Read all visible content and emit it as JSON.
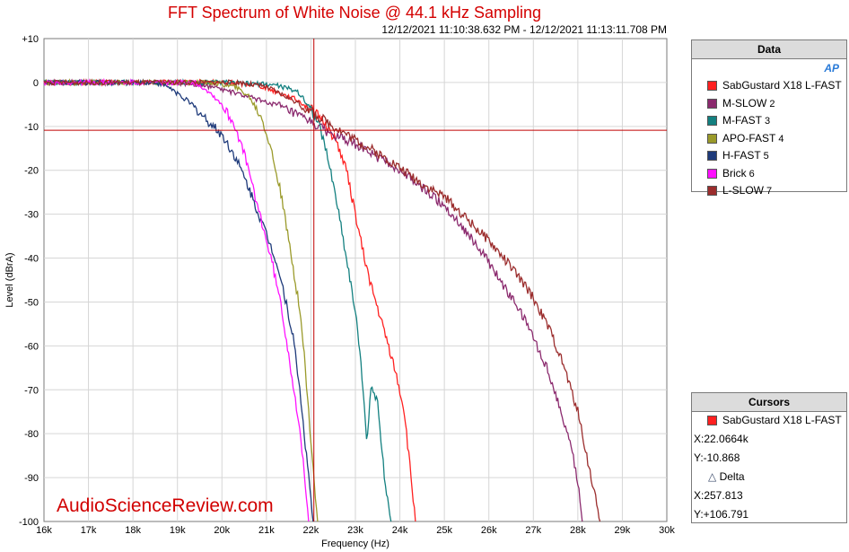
{
  "chart_data": {
    "type": "line",
    "title": "FFT Spectrum of White Noise @ 44.1 kHz Sampling",
    "subtitle": "12/12/2021 11:10:38.632 PM - 12/12/2021 11:13:11.708 PM",
    "xlabel": "Frequency (Hz)",
    "ylabel": "Level (dBrA)",
    "xlim": [
      16000,
      30000
    ],
    "ylim": [
      -100,
      10
    ],
    "x_ticks": [
      "16k",
      "17k",
      "18k",
      "19k",
      "20k",
      "21k",
      "22k",
      "23k",
      "24k",
      "25k",
      "26k",
      "27k",
      "28k",
      "29k",
      "30k"
    ],
    "y_ticks": [
      "+10",
      "0",
      "-10",
      "-20",
      "-30",
      "-40",
      "-50",
      "-60",
      "-70",
      "-80",
      "-90",
      "-100"
    ],
    "grid": true,
    "legend_placement": "right",
    "watermark": "AudioScienceReview.com",
    "cursor": {
      "x": 22066.4,
      "y": -10.868
    },
    "series": [
      {
        "name": "SabGustard X18 L-FAST",
        "color": "#ff2020",
        "points": [
          [
            16000,
            0
          ],
          [
            20000,
            0
          ],
          [
            20800,
            -0.5
          ],
          [
            21200,
            -2
          ],
          [
            21700,
            -4
          ],
          [
            22000,
            -6
          ],
          [
            22300,
            -9
          ],
          [
            22600,
            -14
          ],
          [
            22800,
            -20
          ],
          [
            23000,
            -30
          ],
          [
            23200,
            -40
          ],
          [
            23400,
            -48
          ],
          [
            23600,
            -55
          ],
          [
            23800,
            -62
          ],
          [
            23950,
            -68
          ],
          [
            24100,
            -75
          ],
          [
            24250,
            -90
          ],
          [
            24350,
            -100
          ]
        ]
      },
      {
        "name": "M-SLOW",
        "color": "#8b2a6e",
        "points": [
          [
            16000,
            0
          ],
          [
            19000,
            0
          ],
          [
            19800,
            -1
          ],
          [
            20500,
            -3
          ],
          [
            21200,
            -5
          ],
          [
            22000,
            -9
          ],
          [
            22500,
            -12
          ],
          [
            23000,
            -14
          ],
          [
            23500,
            -17
          ],
          [
            24000,
            -20
          ],
          [
            24500,
            -24
          ],
          [
            25000,
            -28
          ],
          [
            25500,
            -34
          ],
          [
            26000,
            -41
          ],
          [
            26300,
            -46
          ],
          [
            26700,
            -52
          ],
          [
            27000,
            -58
          ],
          [
            27300,
            -65
          ],
          [
            27600,
            -74
          ],
          [
            27900,
            -85
          ],
          [
            28050,
            -95
          ],
          [
            28100,
            -100
          ]
        ]
      },
      {
        "name": "M-FAST",
        "color": "#138080",
        "points": [
          [
            16000,
            0
          ],
          [
            20000,
            0
          ],
          [
            21200,
            -0.5
          ],
          [
            21700,
            -2
          ],
          [
            22000,
            -6
          ],
          [
            22200,
            -10
          ],
          [
            22400,
            -18
          ],
          [
            22600,
            -28
          ],
          [
            22800,
            -40
          ],
          [
            23000,
            -52
          ],
          [
            23100,
            -62
          ],
          [
            23200,
            -73
          ],
          [
            23250,
            -82
          ],
          [
            23350,
            -70
          ],
          [
            23500,
            -72
          ],
          [
            23650,
            -90
          ],
          [
            23800,
            -100
          ]
        ]
      },
      {
        "name": "APO-FAST",
        "color": "#9a9a2a",
        "points": [
          [
            16000,
            0
          ],
          [
            19800,
            0
          ],
          [
            20300,
            -1
          ],
          [
            20600,
            -3
          ],
          [
            20900,
            -8
          ],
          [
            21100,
            -15
          ],
          [
            21300,
            -24
          ],
          [
            21450,
            -33
          ],
          [
            21600,
            -42
          ],
          [
            21750,
            -52
          ],
          [
            21850,
            -62
          ],
          [
            21950,
            -75
          ],
          [
            22050,
            -88
          ],
          [
            22150,
            -100
          ]
        ]
      },
      {
        "name": "H-FAST",
        "color": "#1e3a7a",
        "points": [
          [
            16000,
            0
          ],
          [
            18500,
            0
          ],
          [
            18800,
            -1
          ],
          [
            19200,
            -4
          ],
          [
            19600,
            -8
          ],
          [
            20000,
            -12
          ],
          [
            20300,
            -17
          ],
          [
            20600,
            -24
          ],
          [
            20900,
            -32
          ],
          [
            21200,
            -40
          ],
          [
            21400,
            -48
          ],
          [
            21600,
            -58
          ],
          [
            21750,
            -70
          ],
          [
            21850,
            -80
          ],
          [
            21950,
            -90
          ],
          [
            22050,
            -100
          ]
        ]
      },
      {
        "name": "Brick",
        "color": "#ff10ff",
        "points": [
          [
            16000,
            0
          ],
          [
            19400,
            0
          ],
          [
            19700,
            -2
          ],
          [
            20000,
            -5
          ],
          [
            20300,
            -10
          ],
          [
            20550,
            -18
          ],
          [
            20750,
            -26
          ],
          [
            20950,
            -34
          ],
          [
            21150,
            -42
          ],
          [
            21350,
            -52
          ],
          [
            21500,
            -62
          ],
          [
            21650,
            -72
          ],
          [
            21800,
            -84
          ],
          [
            21900,
            -95
          ],
          [
            21950,
            -100
          ]
        ]
      },
      {
        "name": "L-SLOW",
        "color": "#9b2d2d",
        "points": [
          [
            16000,
            0
          ],
          [
            20400,
            0
          ],
          [
            21000,
            -1
          ],
          [
            21600,
            -4
          ],
          [
            22200,
            -8
          ],
          [
            23000,
            -13
          ],
          [
            23800,
            -18
          ],
          [
            24500,
            -23
          ],
          [
            25000,
            -26
          ],
          [
            25500,
            -31
          ],
          [
            26000,
            -36
          ],
          [
            26500,
            -42
          ],
          [
            27000,
            -49
          ],
          [
            27400,
            -57
          ],
          [
            27700,
            -65
          ],
          [
            28000,
            -75
          ],
          [
            28200,
            -85
          ],
          [
            28400,
            -95
          ],
          [
            28500,
            -100
          ]
        ]
      }
    ]
  },
  "legend": {
    "header": "Data",
    "items": [
      {
        "label": "SabGustard X18 L-FAST",
        "num": ""
      },
      {
        "label": "M-SLOW",
        "num": "2"
      },
      {
        "label": "M-FAST",
        "num": "3"
      },
      {
        "label": "APO-FAST",
        "num": "4"
      },
      {
        "label": "H-FAST",
        "num": "5"
      },
      {
        "label": "Brick",
        "num": "6"
      },
      {
        "label": "L-SLOW",
        "num": "7"
      }
    ],
    "logo": "AP"
  },
  "cursors": {
    "header": "Cursors",
    "series": "SabGustard X18 L-FAST",
    "x": "X:22.0664k",
    "y": "Y:-10.868",
    "delta_label": "Delta",
    "dx": "X:257.813",
    "dy": "Y:+106.791"
  }
}
